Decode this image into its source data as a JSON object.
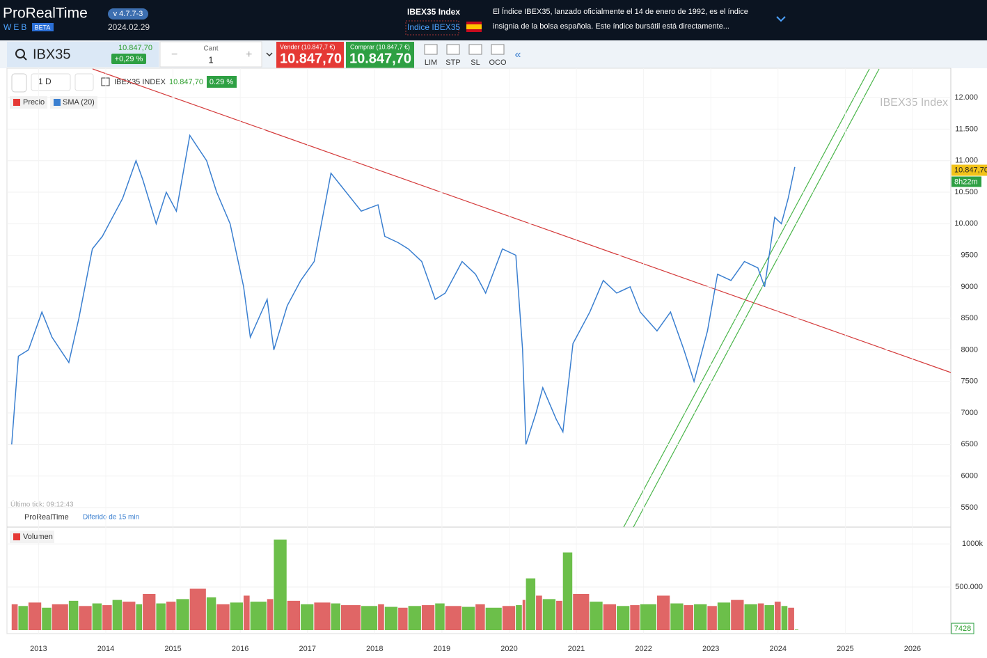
{
  "header": {
    "brand": "ProRealTime",
    "web": "WEB",
    "beta": "BETA",
    "version": "v 4.7.7-3",
    "date": "2024.02.29",
    "index_title": "IBEX35 Index",
    "index_link": "Indice IBEX35",
    "description": [
      "El Índice IBEX35, lanzado oficialmente el 14 de enero de 1992, es el índice",
      "insignia de la bolsa española. Este índice bursátil está directamente..."
    ]
  },
  "toolbar": {
    "symbol": "IBX35",
    "price": "10.847,70",
    "change": "+0,29 %",
    "qty_label": "Cant",
    "qty": "1",
    "sell_label": "Vender (10.847,7 €)",
    "sell_price": "10.847,70",
    "buy_label": "Comprar (10.847,7 €)",
    "buy_price": "10.847,70",
    "orders": [
      "LIM",
      "STP",
      "SL",
      "OCO"
    ]
  },
  "chart_data": {
    "type": "line",
    "interval": "1 D",
    "instrument": "IBEX35 INDEX",
    "last": "10.847,70",
    "change": "0.29 %",
    "legend": [
      "Precio",
      "SMA (20)"
    ],
    "watermark": "IBEX35 Index",
    "last_tick": "Último tick: 09:12:43",
    "footer": "ProRealTime",
    "delay": "Diferido de 15 min",
    "color": "#3a7fd0",
    "x": [
      2012.6,
      2012.7,
      2012.85,
      2013.05,
      2013.2,
      2013.45,
      2013.6,
      2013.8,
      2013.95,
      2014.1,
      2014.25,
      2014.45,
      2014.55,
      2014.75,
      2014.9,
      2015.05,
      2015.25,
      2015.5,
      2015.65,
      2015.85,
      2016.05,
      2016.15,
      2016.4,
      2016.5,
      2016.7,
      2016.9,
      2017.1,
      2017.35,
      2017.5,
      2017.8,
      2018.05,
      2018.15,
      2018.35,
      2018.5,
      2018.7,
      2018.9,
      2019.05,
      2019.3,
      2019.5,
      2019.65,
      2019.9,
      2020.1,
      2020.2,
      2020.25,
      2020.4,
      2020.5,
      2020.7,
      2020.8,
      2020.95,
      2021.2,
      2021.4,
      2021.6,
      2021.8,
      2021.95,
      2022.2,
      2022.4,
      2022.6,
      2022.75,
      2022.95,
      2023.1,
      2023.3,
      2023.5,
      2023.7,
      2023.8,
      2023.95,
      2024.05,
      2024.15,
      2024.25
    ],
    "values": [
      6500,
      7900,
      8000,
      8600,
      8200,
      7800,
      8500,
      9600,
      9800,
      10100,
      10400,
      11000,
      10700,
      10000,
      10500,
      10200,
      11400,
      11000,
      10500,
      10000,
      9000,
      8200,
      8800,
      8000,
      8700,
      9100,
      9400,
      10800,
      10600,
      10200,
      10300,
      9800,
      9700,
      9600,
      9400,
      8800,
      8900,
      9400,
      9200,
      8900,
      9600,
      9500,
      8000,
      6500,
      7000,
      7400,
      6900,
      6700,
      8100,
      8600,
      9100,
      8900,
      9000,
      8600,
      8300,
      8600,
      8000,
      7500,
      8300,
      9200,
      9100,
      9400,
      9300,
      9000,
      10100,
      10000,
      10400,
      10900
    ],
    "xlim": [
      2012.53,
      2026.57
    ],
    "xticks": [
      2013,
      2014,
      2015,
      2016,
      2017,
      2018,
      2019,
      2020,
      2021,
      2022,
      2023,
      2024,
      2025,
      2026
    ],
    "ylim": [
      5190,
      12465
    ],
    "yticks": [
      {
        "value": 12000,
        "label": "12.000"
      },
      {
        "value": 11500,
        "label": "11.500"
      },
      {
        "value": 11000,
        "label": "11.000"
      },
      {
        "value": 10500,
        "label": "10.500"
      },
      {
        "value": 10000,
        "label": "10.000"
      },
      9500,
      9000,
      8500,
      8000,
      7500,
      7000,
      6500,
      6000,
      5500
    ],
    "last_tag": {
      "value": 10847.7,
      "label": "10.847,70"
    },
    "timer": "8h22m",
    "grid": true,
    "volume": {
      "label": "Volumen",
      "color": "#e06666",
      "values": [
        300000,
        280000,
        320000,
        260000,
        300000,
        340000,
        280000,
        310000,
        290000,
        350000,
        330000,
        300000,
        420000,
        310000,
        330000,
        360000,
        480000,
        380000,
        300000,
        320000,
        400000,
        330000,
        360000,
        1050000,
        340000,
        300000,
        320000,
        310000,
        290000,
        280000,
        300000,
        270000,
        260000,
        280000,
        290000,
        310000,
        280000,
        270000,
        300000,
        260000,
        280000,
        290000,
        350000,
        600000,
        400000,
        360000,
        340000,
        900000,
        420000,
        330000,
        300000,
        280000,
        290000,
        300000,
        400000,
        310000,
        290000,
        300000,
        280000,
        320000,
        350000,
        300000,
        310000,
        290000,
        330000,
        280000,
        260000,
        7428
      ],
      "lim": [
        0,
        1170000
      ],
      "ticks": [
        {
          "value": 1000000,
          "label": "1000k"
        },
        {
          "value": 500000,
          "label": "500.000"
        }
      ],
      "last": 7428
    }
  }
}
